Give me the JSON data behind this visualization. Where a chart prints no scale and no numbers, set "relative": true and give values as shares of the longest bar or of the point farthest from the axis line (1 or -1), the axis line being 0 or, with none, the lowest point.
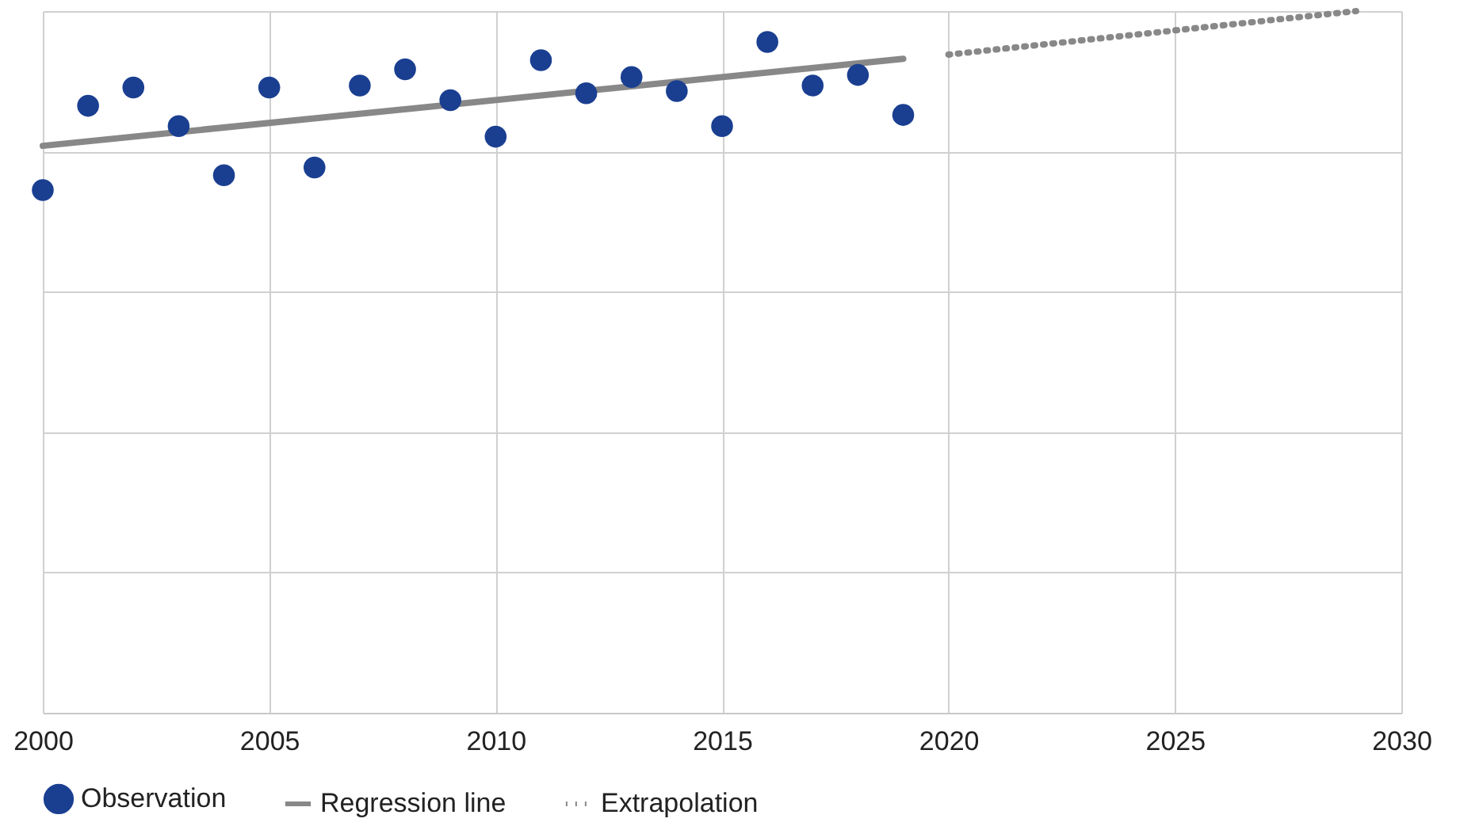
{
  "chart_data": {
    "type": "scatter",
    "relative": true,
    "xlim": [
      2000,
      2030
    ],
    "xticks": [
      2000,
      2005,
      2010,
      2015,
      2020,
      2025,
      2030
    ],
    "grid": true,
    "legend": "bottom left",
    "series": [
      {
        "name": "Observation",
        "marker": "circle",
        "color": "#1a3f91",
        "x": [
          2000,
          2001,
          2002,
          2003,
          2004,
          2005,
          2006,
          2007,
          2008,
          2009,
          2010,
          2011,
          2012,
          2013,
          2014,
          2015,
          2016,
          2017,
          2018,
          2019
        ],
        "values": [
          0.745,
          0.865,
          0.891,
          0.836,
          0.766,
          0.891,
          0.777,
          0.894,
          0.917,
          0.873,
          0.821,
          0.93,
          0.883,
          0.906,
          0.886,
          0.836,
          0.956,
          0.894,
          0.909,
          0.852
        ]
      },
      {
        "name": "Regression line",
        "type": "line",
        "line_style": "solid",
        "color": "#888888",
        "x": [
          2000,
          2019
        ],
        "values": [
          0.808,
          0.932
        ]
      },
      {
        "name": "Extrapolation",
        "type": "line",
        "line_style": "dotted",
        "color": "#888888",
        "x": [
          2020,
          2029
        ],
        "values": [
          0.938,
          1
        ]
      }
    ]
  }
}
